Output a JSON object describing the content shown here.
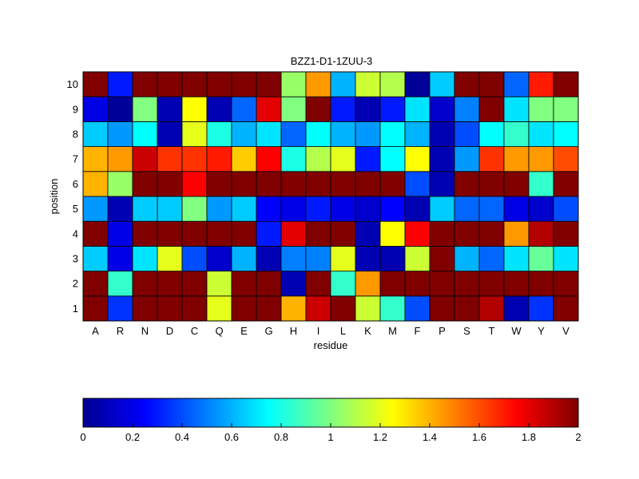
{
  "chart_data": {
    "type": "heatmap",
    "title": "BZZ1-D1-1ZUU-3",
    "xlabel": "residue",
    "ylabel": "position",
    "x_categories": [
      "A",
      "R",
      "N",
      "D",
      "C",
      "Q",
      "E",
      "G",
      "H",
      "I",
      "L",
      "K",
      "M",
      "F",
      "P",
      "S",
      "T",
      "W",
      "Y",
      "V"
    ],
    "y_categories": [
      "1",
      "2",
      "3",
      "4",
      "5",
      "6",
      "7",
      "8",
      "9",
      "10"
    ],
    "color_range": [
      0,
      2
    ],
    "colormap": "jet",
    "colorbar_ticks": [
      "0",
      "0.2",
      "0.4",
      "0.6",
      "0.8",
      "1",
      "1.2",
      "1.4",
      "1.6",
      "1.8",
      "2"
    ],
    "grid": true,
    "values": [
      [
        2.0,
        0.35,
        2.0,
        2.0,
        2.0,
        1.2,
        2.0,
        2.0,
        1.4,
        1.85,
        2.0,
        1.15,
        0.85,
        0.4,
        2.0,
        2.0,
        1.9,
        0.1,
        0.35,
        2.0
      ],
      [
        2.0,
        0.85,
        2.0,
        2.0,
        2.0,
        1.15,
        2.0,
        2.0,
        0.1,
        2.0,
        0.85,
        1.45,
        2.0,
        2.0,
        2.0,
        2.0,
        2.0,
        2.0,
        2.0,
        2.0
      ],
      [
        0.65,
        0.2,
        0.7,
        1.2,
        0.4,
        0.15,
        0.6,
        0.1,
        0.5,
        0.5,
        1.2,
        0.1,
        0.1,
        1.15,
        2.0,
        0.6,
        0.45,
        0.7,
        0.95,
        0.7
      ],
      [
        2.0,
        0.2,
        2.0,
        2.0,
        2.0,
        2.0,
        2.0,
        0.3,
        1.8,
        2.0,
        2.0,
        0.1,
        1.25,
        1.75,
        2.0,
        2.0,
        2.0,
        1.45,
        1.9,
        2.0
      ],
      [
        0.55,
        0.1,
        0.65,
        0.65,
        1.0,
        0.55,
        0.65,
        0.25,
        0.2,
        0.3,
        0.2,
        0.15,
        0.25,
        0.1,
        0.65,
        0.45,
        0.45,
        0.2,
        0.15,
        0.4
      ],
      [
        1.4,
        1.05,
        2.0,
        2.0,
        1.75,
        2.0,
        2.0,
        2.0,
        2.0,
        2.0,
        2.0,
        2.0,
        2.0,
        0.4,
        0.1,
        2.0,
        2.0,
        2.0,
        0.85,
        2.0
      ],
      [
        1.4,
        1.45,
        1.85,
        1.65,
        1.65,
        1.7,
        1.35,
        1.75,
        0.8,
        1.1,
        1.2,
        0.3,
        0.75,
        1.25,
        0.1,
        0.55,
        1.65,
        1.45,
        1.45,
        1.6
      ],
      [
        0.65,
        0.55,
        0.75,
        0.1,
        1.2,
        0.8,
        0.6,
        0.7,
        0.45,
        0.75,
        0.6,
        0.55,
        0.75,
        0.6,
        0.1,
        0.4,
        0.75,
        0.85,
        0.7,
        0.75
      ],
      [
        0.2,
        0.05,
        1.0,
        0.1,
        1.25,
        0.1,
        0.45,
        1.8,
        1.0,
        2.0,
        0.3,
        0.1,
        0.3,
        0.7,
        0.15,
        0.5,
        2.0,
        0.7,
        1.0,
        1.0
      ],
      [
        2.0,
        0.3,
        2.0,
        2.0,
        2.0,
        2.0,
        2.0,
        2.0,
        1.05,
        1.45,
        0.6,
        1.15,
        1.1,
        0.05,
        0.65,
        2.0,
        2.0,
        0.45,
        1.7,
        2.0
      ]
    ]
  }
}
